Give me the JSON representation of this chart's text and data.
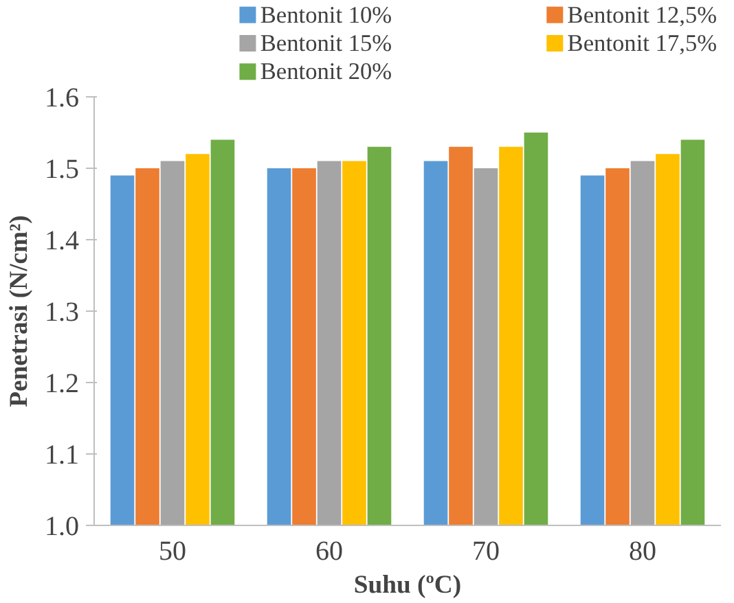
{
  "chart_data": {
    "type": "bar",
    "xlabel": "Suhu (ºC)",
    "ylabel": "Penetrasi (N/cm²)",
    "categories": [
      "50",
      "60",
      "70",
      "80"
    ],
    "series": [
      {
        "name": "Bentonit 10%",
        "color": "#5b9bd5",
        "values": [
          1.49,
          1.5,
          1.51,
          1.49
        ]
      },
      {
        "name": "Bentonit 12,5%",
        "color": "#ed7d31",
        "values": [
          1.5,
          1.5,
          1.53,
          1.5
        ]
      },
      {
        "name": "Bentonit 15%",
        "color": "#a5a5a5",
        "values": [
          1.51,
          1.51,
          1.5,
          1.51
        ]
      },
      {
        "name": "Bentonit 17,5%",
        "color": "#ffc000",
        "values": [
          1.52,
          1.51,
          1.53,
          1.52
        ]
      },
      {
        "name": "Bentonit 20%",
        "color": "#70ad47",
        "values": [
          1.54,
          1.53,
          1.55,
          1.54
        ]
      }
    ],
    "ylim": [
      1.0,
      1.6
    ],
    "yticks": [
      {
        "value": 1.0,
        "label": "1.0"
      },
      1.1,
      1.2,
      1.3,
      1.4,
      1.5,
      1.6
    ],
    "grid": false,
    "legend": "top"
  }
}
